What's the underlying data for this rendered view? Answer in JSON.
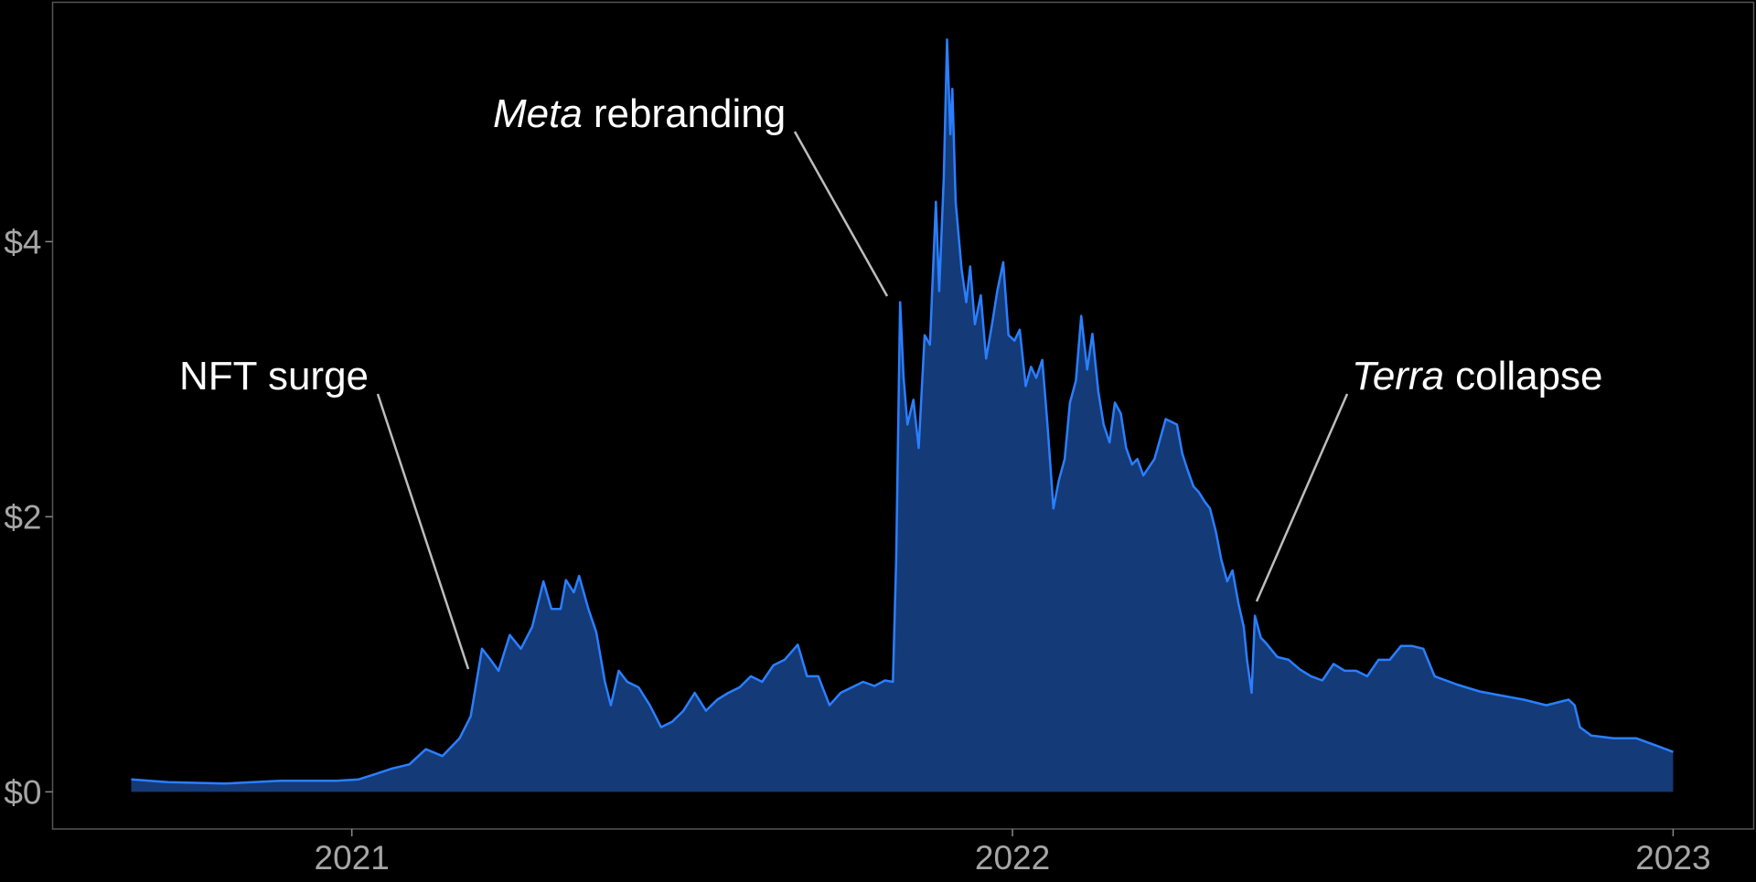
{
  "chart_data": {
    "type": "area",
    "x": [
      2020.666,
      2020.722,
      2020.807,
      2020.891,
      2020.976,
      2021.01,
      2021.036,
      2021.061,
      2021.087,
      2021.112,
      2021.137,
      2021.163,
      2021.18,
      2021.197,
      2021.21,
      2021.222,
      2021.239,
      2021.256,
      2021.273,
      2021.29,
      2021.302,
      2021.316,
      2021.324,
      2021.336,
      2021.344,
      2021.358,
      2021.37,
      2021.383,
      2021.392,
      2021.404,
      2021.417,
      2021.434,
      2021.451,
      2021.468,
      2021.485,
      2021.502,
      2021.519,
      2021.536,
      2021.553,
      2021.57,
      2021.587,
      2021.604,
      2021.621,
      2021.638,
      2021.655,
      2021.675,
      2021.689,
      2021.706,
      2021.723,
      2021.74,
      2021.757,
      2021.774,
      2021.791,
      2021.807,
      2021.819,
      2021.824,
      2021.83,
      2021.835,
      2021.841,
      2021.85,
      2021.858,
      2021.867,
      2021.875,
      2021.884,
      2021.889,
      2021.896,
      2021.901,
      2021.906,
      2021.909,
      2021.914,
      2021.923,
      2021.93,
      2021.936,
      2021.943,
      2021.952,
      2021.96,
      2021.969,
      2021.977,
      2021.986,
      2021.994,
      2022.003,
      2022.011,
      2022.02,
      2022.028,
      2022.036,
      2022.045,
      2022.053,
      2022.062,
      2022.07,
      2022.079,
      2022.087,
      2022.096,
      2022.104,
      2022.113,
      2022.121,
      2022.13,
      2022.138,
      2022.147,
      2022.155,
      2022.164,
      2022.172,
      2022.181,
      2022.189,
      2022.198,
      2022.215,
      2022.232,
      2022.249,
      2022.257,
      2022.265,
      2022.274,
      2022.282,
      2022.291,
      2022.299,
      2022.308,
      2022.316,
      2022.325,
      2022.333,
      2022.342,
      2022.35,
      2022.355,
      2022.362,
      2022.367,
      2022.376,
      2022.384,
      2022.401,
      2022.418,
      2022.435,
      2022.452,
      2022.469,
      2022.486,
      2022.503,
      2022.52,
      2022.537,
      2022.554,
      2022.571,
      2022.588,
      2022.605,
      2022.622,
      2022.639,
      2022.673,
      2022.707,
      2022.74,
      2022.774,
      2022.808,
      2022.842,
      2022.851,
      2022.859,
      2022.876,
      2022.91,
      2022.944,
      2022.978,
      2023.0
    ],
    "series": [
      {
        "color": "#2a7fff",
        "fill": "#143a78",
        "values": [
          0.09,
          0.07,
          0.06,
          0.08,
          0.08,
          0.09,
          0.13,
          0.17,
          0.2,
          0.31,
          0.26,
          0.39,
          0.55,
          1.04,
          0.96,
          0.88,
          1.14,
          1.04,
          1.2,
          1.53,
          1.33,
          1.33,
          1.54,
          1.45,
          1.57,
          1.33,
          1.16,
          0.8,
          0.63,
          0.88,
          0.8,
          0.76,
          0.63,
          0.47,
          0.51,
          0.59,
          0.72,
          0.59,
          0.67,
          0.72,
          0.76,
          0.84,
          0.8,
          0.92,
          0.96,
          1.07,
          0.84,
          0.84,
          0.63,
          0.72,
          0.76,
          0.8,
          0.77,
          0.81,
          0.8,
          1.69,
          3.56,
          3.02,
          2.67,
          2.85,
          2.5,
          3.32,
          3.25,
          4.29,
          3.64,
          4.46,
          5.47,
          4.78,
          5.11,
          4.29,
          3.8,
          3.56,
          3.82,
          3.4,
          3.61,
          3.15,
          3.4,
          3.64,
          3.85,
          3.32,
          3.28,
          3.36,
          2.95,
          3.09,
          3.01,
          3.14,
          2.67,
          2.06,
          2.26,
          2.42,
          2.83,
          2.99,
          3.46,
          3.07,
          3.33,
          2.91,
          2.67,
          2.54,
          2.83,
          2.75,
          2.5,
          2.38,
          2.42,
          2.3,
          2.42,
          2.71,
          2.67,
          2.46,
          2.34,
          2.22,
          2.18,
          2.11,
          2.06,
          1.89,
          1.69,
          1.53,
          1.61,
          1.37,
          1.2,
          0.96,
          0.72,
          1.28,
          1.12,
          1.08,
          0.98,
          0.96,
          0.89,
          0.84,
          0.81,
          0.93,
          0.88,
          0.88,
          0.84,
          0.96,
          0.96,
          1.06,
          1.06,
          1.04,
          0.84,
          0.78,
          0.73,
          0.7,
          0.67,
          0.63,
          0.67,
          0.63,
          0.47,
          0.41,
          0.39,
          0.39,
          0.33,
          0.29
        ]
      }
    ],
    "xlim": [
      2020.547,
      2023.122
    ],
    "xticks": [
      2021,
      2022,
      2023
    ],
    "ylim": [
      -0.27,
      5.74
    ],
    "yticks": [
      {
        "value": 0,
        "label": "$0"
      },
      {
        "value": 2,
        "label": "$2"
      },
      {
        "value": 4,
        "label": "$4"
      }
    ],
    "annotations": [
      {
        "text": "NFT surge"
      },
      {
        "italic": "Meta",
        "text": "rebranding"
      },
      {
        "italic": "Terra",
        "text": "collapse"
      }
    ]
  }
}
